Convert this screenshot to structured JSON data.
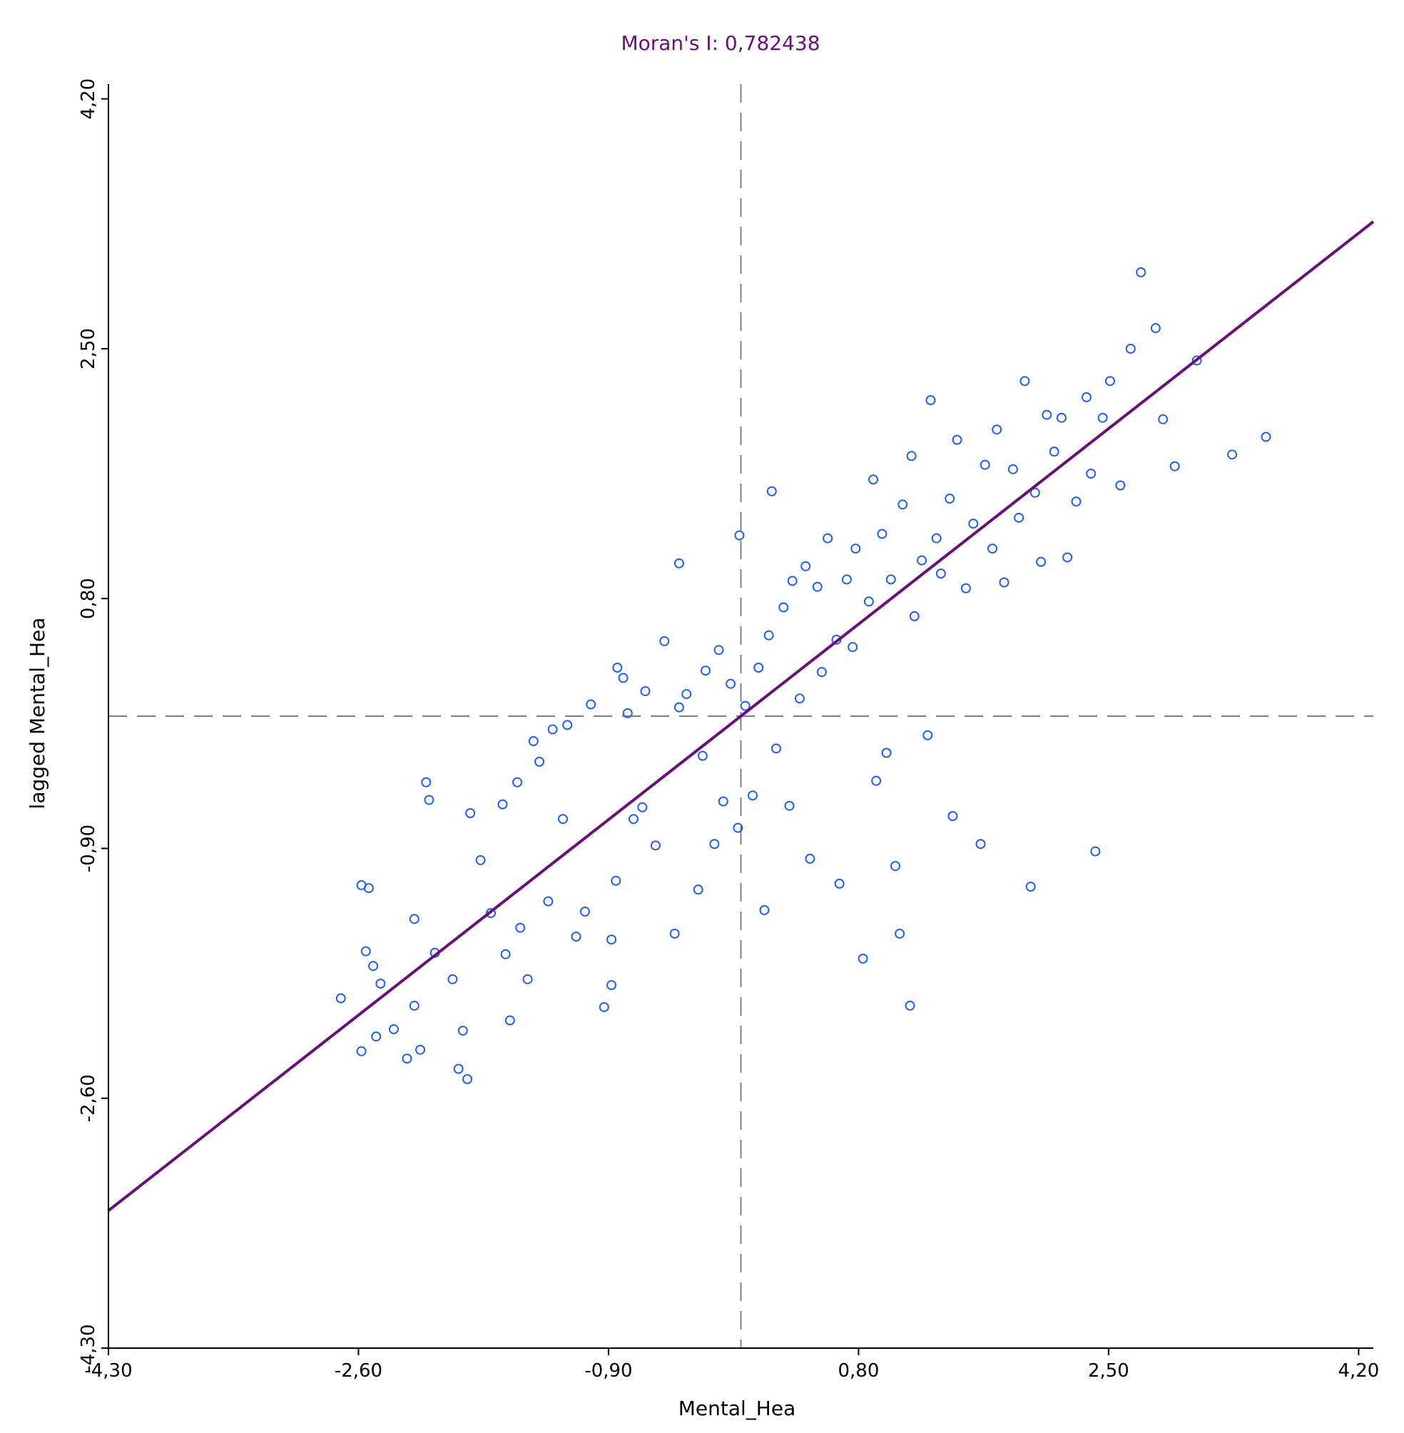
{
  "chart_data": {
    "type": "scatter",
    "title": "Moran's I: 0,782438",
    "xlabel": "Mental_Hea",
    "ylabel": "lagged Mental_Hea",
    "xlim": [
      -4.3,
      4.3
    ],
    "ylim": [
      -4.3,
      4.3
    ],
    "x_ticks": [
      -4.3,
      -2.6,
      -0.9,
      0.8,
      2.5,
      4.2
    ],
    "y_ticks": [
      -4.3,
      -2.6,
      -0.9,
      0.8,
      2.5,
      4.2
    ],
    "x_tick_labels": [
      "-4,30",
      "-2,60",
      "-0,90",
      "0,80",
      "2,50",
      "4,20"
    ],
    "y_tick_labels": [
      "-4,30",
      "-2,60",
      "-0,90",
      "0,80",
      "2,50",
      "4,20"
    ],
    "grid": false,
    "legend": "none",
    "reference_lines": {
      "x_mean": 0,
      "y_mean": 0,
      "style": "dashed"
    },
    "regression": {
      "slope": 0.782438,
      "intercept": 0,
      "x_range": [
        -4.3,
        4.3
      ]
    },
    "colors": {
      "points": "#1f5fff",
      "regression": "#6a0f7a",
      "title": "#6a0f7a",
      "reference": "#808080",
      "axes": "#000000"
    },
    "series": [
      {
        "values": [
          [
            -2.72,
            -1.92
          ],
          [
            -2.58,
            -1.15
          ],
          [
            -2.53,
            -1.17
          ],
          [
            -2.55,
            -1.6
          ],
          [
            -2.5,
            -1.7
          ],
          [
            -2.58,
            -2.28
          ],
          [
            -2.48,
            -2.18
          ],
          [
            -2.45,
            -1.82
          ],
          [
            -2.36,
            -2.13
          ],
          [
            -2.27,
            -2.33
          ],
          [
            -2.22,
            -1.97
          ],
          [
            -2.18,
            -2.27
          ],
          [
            -2.22,
            -1.38
          ],
          [
            -2.14,
            -0.45
          ],
          [
            -2.12,
            -0.57
          ],
          [
            -2.08,
            -1.61
          ],
          [
            -1.96,
            -1.79
          ],
          [
            -1.92,
            -2.4
          ],
          [
            -1.89,
            -2.14
          ],
          [
            -1.84,
            -0.66
          ],
          [
            -1.86,
            -2.47
          ],
          [
            -1.77,
            -0.98
          ],
          [
            -1.7,
            -1.34
          ],
          [
            -1.62,
            -0.6
          ],
          [
            -1.6,
            -1.62
          ],
          [
            -1.57,
            -2.07
          ],
          [
            -1.52,
            -0.45
          ],
          [
            -1.5,
            -1.44
          ],
          [
            -1.45,
            -1.79
          ],
          [
            -1.41,
            -0.17
          ],
          [
            -1.37,
            -0.31
          ],
          [
            -1.31,
            -1.26
          ],
          [
            -1.28,
            -0.09
          ],
          [
            -1.21,
            -0.7
          ],
          [
            -1.12,
            -1.5
          ],
          [
            -1.18,
            -0.06
          ],
          [
            -1.06,
            -1.33
          ],
          [
            -1.02,
            0.08
          ],
          [
            -0.93,
            -1.98
          ],
          [
            -0.88,
            -1.83
          ],
          [
            -0.88,
            -1.52
          ],
          [
            -0.85,
            -1.12
          ],
          [
            -0.84,
            0.33
          ],
          [
            -0.8,
            0.26
          ],
          [
            -0.77,
            0.02
          ],
          [
            -0.73,
            -0.7
          ],
          [
            -0.67,
            -0.62
          ],
          [
            -0.65,
            0.17
          ],
          [
            -0.58,
            -0.88
          ],
          [
            -0.52,
            0.51
          ],
          [
            -0.45,
            -1.48
          ],
          [
            -0.42,
            0.06
          ],
          [
            -0.42,
            1.04
          ],
          [
            -0.37,
            0.15
          ],
          [
            -0.29,
            -1.18
          ],
          [
            -0.26,
            -0.27
          ],
          [
            -0.24,
            0.31
          ],
          [
            -0.18,
            -0.87
          ],
          [
            -0.15,
            0.45
          ],
          [
            -0.12,
            -0.58
          ],
          [
            -0.07,
            0.22
          ],
          [
            -0.02,
            -0.76
          ],
          [
            -0.01,
            1.23
          ],
          [
            0.03,
            0.07
          ],
          [
            0.08,
            -0.54
          ],
          [
            0.12,
            0.33
          ],
          [
            0.16,
            -1.32
          ],
          [
            0.19,
            0.55
          ],
          [
            0.21,
            1.53
          ],
          [
            0.24,
            -0.22
          ],
          [
            0.29,
            0.74
          ],
          [
            0.33,
            -0.61
          ],
          [
            0.35,
            0.92
          ],
          [
            0.4,
            0.12
          ],
          [
            0.44,
            1.02
          ],
          [
            0.47,
            -0.97
          ],
          [
            0.52,
            0.88
          ],
          [
            0.55,
            0.3
          ],
          [
            0.59,
            1.21
          ],
          [
            0.65,
            0.52
          ],
          [
            0.67,
            -1.14
          ],
          [
            0.72,
            0.93
          ],
          [
            0.76,
            0.47
          ],
          [
            0.78,
            1.14
          ],
          [
            0.83,
            -1.65
          ],
          [
            0.87,
            0.78
          ],
          [
            0.9,
            1.61
          ],
          [
            0.92,
            -0.44
          ],
          [
            0.96,
            1.24
          ],
          [
            0.99,
            -0.25
          ],
          [
            1.02,
            0.93
          ],
          [
            1.05,
            -1.02
          ],
          [
            1.08,
            -1.48
          ],
          [
            1.1,
            1.44
          ],
          [
            1.15,
            -1.97
          ],
          [
            1.16,
            1.77
          ],
          [
            1.18,
            0.68
          ],
          [
            1.23,
            1.06
          ],
          [
            1.27,
            -0.13
          ],
          [
            1.29,
            2.15
          ],
          [
            1.33,
            1.21
          ],
          [
            1.36,
            0.97
          ],
          [
            1.42,
            1.48
          ],
          [
            1.44,
            -0.68
          ],
          [
            1.47,
            1.88
          ],
          [
            1.53,
            0.87
          ],
          [
            1.58,
            1.31
          ],
          [
            1.63,
            -0.87
          ],
          [
            1.66,
            1.71
          ],
          [
            1.71,
            1.14
          ],
          [
            1.74,
            1.95
          ],
          [
            1.79,
            0.91
          ],
          [
            1.85,
            1.68
          ],
          [
            1.89,
            1.35
          ],
          [
            1.93,
            2.28
          ],
          [
            1.97,
            -1.16
          ],
          [
            2.0,
            1.52
          ],
          [
            2.04,
            1.05
          ],
          [
            2.08,
            2.05
          ],
          [
            2.13,
            1.8
          ],
          [
            2.18,
            2.03
          ],
          [
            2.22,
            1.08
          ],
          [
            2.28,
            1.46
          ],
          [
            2.35,
            2.17
          ],
          [
            2.38,
            1.65
          ],
          [
            2.41,
            -0.92
          ],
          [
            2.46,
            2.03
          ],
          [
            2.51,
            2.28
          ],
          [
            2.58,
            1.57
          ],
          [
            2.65,
            2.5
          ],
          [
            2.72,
            3.02
          ],
          [
            2.82,
            2.64
          ],
          [
            2.87,
            2.02
          ],
          [
            2.95,
            1.7
          ],
          [
            3.1,
            2.42
          ],
          [
            3.34,
            1.78
          ],
          [
            3.57,
            1.9
          ]
        ]
      }
    ]
  }
}
